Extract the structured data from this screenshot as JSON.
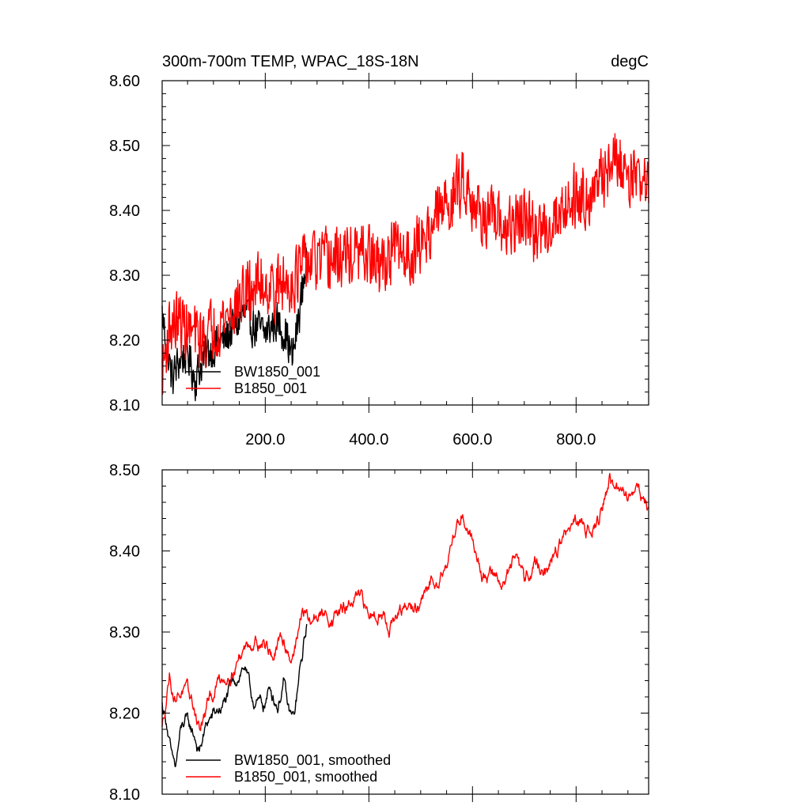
{
  "chart_data": [
    {
      "type": "line",
      "title_left": "300m-700m TEMP, WPAC_18S-18N",
      "title_right": "degC",
      "xlabel": "",
      "ylabel": "",
      "xlim": [
        1,
        940
      ],
      "ylim": [
        8.1,
        8.6
      ],
      "yticks": [
        "8.10",
        "8.20",
        "8.30",
        "8.40",
        "8.50",
        "8.60"
      ],
      "xticks": [
        "200.0",
        "400.0",
        "600.0",
        "800.0"
      ],
      "legend": [
        "BW1850_001",
        "B1850_001"
      ],
      "legend_position": "bottom-left",
      "series": [
        {
          "name": "BW1850_001",
          "color": "#000000",
          "x_range": [
            1,
            280
          ],
          "anchors": [
            [
              1,
              8.24
            ],
            [
              10,
              8.19
            ],
            [
              20,
              8.14
            ],
            [
              35,
              8.17
            ],
            [
              50,
              8.18
            ],
            [
              65,
              8.14
            ],
            [
              80,
              8.17
            ],
            [
              100,
              8.19
            ],
            [
              120,
              8.2
            ],
            [
              140,
              8.22
            ],
            [
              160,
              8.24
            ],
            [
              180,
              8.22
            ],
            [
              200,
              8.21
            ],
            [
              220,
              8.23
            ],
            [
              240,
              8.21
            ],
            [
              252,
              8.17
            ],
            [
              262,
              8.22
            ],
            [
              272,
              8.28
            ],
            [
              280,
              8.33
            ]
          ],
          "noise_amplitude": 0.03
        },
        {
          "name": "B1850_001",
          "color": "#ff0000",
          "x_range": [
            1,
            940
          ],
          "anchors": [
            [
              1,
              8.15
            ],
            [
              15,
              8.22
            ],
            [
              30,
              8.23
            ],
            [
              60,
              8.21
            ],
            [
              80,
              8.2
            ],
            [
              100,
              8.22
            ],
            [
              130,
              8.24
            ],
            [
              160,
              8.27
            ],
            [
              190,
              8.29
            ],
            [
              220,
              8.28
            ],
            [
              250,
              8.29
            ],
            [
              280,
              8.32
            ],
            [
              320,
              8.32
            ],
            [
              360,
              8.33
            ],
            [
              400,
              8.33
            ],
            [
              420,
              8.31
            ],
            [
              450,
              8.34
            ],
            [
              480,
              8.33
            ],
            [
              500,
              8.35
            ],
            [
              530,
              8.39
            ],
            [
              560,
              8.42
            ],
            [
              585,
              8.45
            ],
            [
              610,
              8.4
            ],
            [
              640,
              8.38
            ],
            [
              670,
              8.37
            ],
            [
              700,
              8.39
            ],
            [
              720,
              8.36
            ],
            [
              760,
              8.39
            ],
            [
              790,
              8.42
            ],
            [
              840,
              8.43
            ],
            [
              870,
              8.48
            ],
            [
              900,
              8.46
            ],
            [
              930,
              8.45
            ],
            [
              940,
              8.43
            ]
          ],
          "noise_amplitude": 0.045
        }
      ]
    },
    {
      "type": "line",
      "title_left": "",
      "title_right": "",
      "xlabel": "",
      "ylabel": "",
      "xlim": [
        1,
        940
      ],
      "ylim": [
        8.1,
        8.5
      ],
      "yticks": [
        "8.10",
        "8.20",
        "8.30",
        "8.40",
        "8.50"
      ],
      "xticks": [],
      "legend": [
        "BW1850_001, smoothed",
        "B1850_001, smoothed"
      ],
      "legend_position": "bottom-left",
      "series": [
        {
          "name": "BW1850_001, smoothed",
          "color": "#000000",
          "x_range": [
            1,
            280
          ],
          "anchors": [
            [
              1,
              8.21
            ],
            [
              10,
              8.19
            ],
            [
              20,
              8.14
            ],
            [
              27,
              8.13
            ],
            [
              35,
              8.17
            ],
            [
              45,
              8.19
            ],
            [
              55,
              8.18
            ],
            [
              65,
              8.17
            ],
            [
              72,
              8.15
            ],
            [
              80,
              8.17
            ],
            [
              90,
              8.19
            ],
            [
              105,
              8.2
            ],
            [
              120,
              8.21
            ],
            [
              135,
              8.23
            ],
            [
              150,
              8.25
            ],
            [
              160,
              8.26
            ],
            [
              172,
              8.22
            ],
            [
              185,
              8.21
            ],
            [
              198,
              8.21
            ],
            [
              210,
              8.23
            ],
            [
              225,
              8.21
            ],
            [
              235,
              8.24
            ],
            [
              245,
              8.2
            ],
            [
              255,
              8.19
            ],
            [
              265,
              8.24
            ],
            [
              272,
              8.27
            ],
            [
              280,
              8.31
            ]
          ],
          "noise_amplitude": 0.006
        },
        {
          "name": "B1850_001, smoothed",
          "color": "#ff0000",
          "x_range": [
            1,
            940
          ],
          "anchors": [
            [
              1,
              8.18
            ],
            [
              15,
              8.25
            ],
            [
              25,
              8.22
            ],
            [
              40,
              8.23
            ],
            [
              60,
              8.21
            ],
            [
              75,
              8.18
            ],
            [
              90,
              8.21
            ],
            [
              110,
              8.24
            ],
            [
              130,
              8.25
            ],
            [
              150,
              8.27
            ],
            [
              170,
              8.29
            ],
            [
              195,
              8.29
            ],
            [
              215,
              8.27
            ],
            [
              235,
              8.29
            ],
            [
              250,
              8.27
            ],
            [
              265,
              8.3
            ],
            [
              272,
              8.33
            ],
            [
              285,
              8.31
            ],
            [
              300,
              8.32
            ],
            [
              330,
              8.32
            ],
            [
              360,
              8.33
            ],
            [
              380,
              8.34
            ],
            [
              400,
              8.32
            ],
            [
              420,
              8.33
            ],
            [
              440,
              8.31
            ],
            [
              460,
              8.32
            ],
            [
              480,
              8.33
            ],
            [
              500,
              8.33
            ],
            [
              520,
              8.36
            ],
            [
              545,
              8.38
            ],
            [
              565,
              8.42
            ],
            [
              580,
              8.45
            ],
            [
              590,
              8.43
            ],
            [
              605,
              8.41
            ],
            [
              620,
              8.37
            ],
            [
              640,
              8.37
            ],
            [
              660,
              8.36
            ],
            [
              680,
              8.39
            ],
            [
              700,
              8.36
            ],
            [
              720,
              8.39
            ],
            [
              740,
              8.37
            ],
            [
              760,
              8.4
            ],
            [
              790,
              8.43
            ],
            [
              820,
              8.43
            ],
            [
              845,
              8.44
            ],
            [
              865,
              8.49
            ],
            [
              880,
              8.47
            ],
            [
              900,
              8.47
            ],
            [
              920,
              8.48
            ],
            [
              935,
              8.46
            ],
            [
              940,
              8.45
            ]
          ],
          "noise_amplitude": 0.006
        }
      ]
    }
  ]
}
